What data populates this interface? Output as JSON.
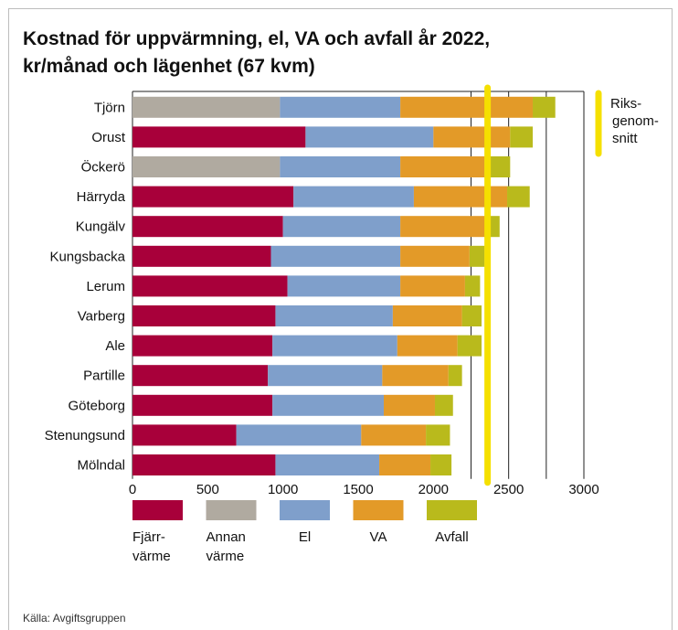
{
  "title_line1": "Kostnad för uppvärmning, el, VA och avfall år 2022,",
  "title_line2": "kr/månad och lägenhet (67 kvm)",
  "source": "Källa: Avgiftsgruppen",
  "colors": {
    "fjarrvarme": "#a8003a",
    "annan_varme": "#b0aaa0",
    "el": "#7f9fcb",
    "va": "#e39a28",
    "avfall": "#b9ba1c",
    "reference": "#f5e000",
    "gridline": "#222222"
  },
  "chart_data": {
    "type": "bar",
    "orientation": "horizontal",
    "stacked": true,
    "title": "Kostnad för uppvärmning, el, VA och avfall år 2022, kr/månad och lägenhet (67 kvm)",
    "xlim": [
      0,
      3000
    ],
    "xticks": [
      0,
      500,
      1000,
      1500,
      2000,
      2500,
      3000
    ],
    "grid_x_values": [
      2250,
      2500,
      2750,
      3000
    ],
    "legend_position": "bottom",
    "categories": [
      "Tjörn",
      "Orust",
      "Öckerö",
      "Härryda",
      "Kungälv",
      "Kungsbacka",
      "Lerum",
      "Varberg",
      "Ale",
      "Partille",
      "Göteborg",
      "Stenungsund",
      "Mölndal"
    ],
    "heating_type": [
      "annan",
      "fjarr",
      "annan",
      "fjarr",
      "fjarr",
      "fjarr",
      "fjarr",
      "fjarr",
      "fjarr",
      "fjarr",
      "fjarr",
      "fjarr",
      "fjarr"
    ],
    "series": [
      {
        "key": "fjarrvarme",
        "name": "Fjärr- värme",
        "values": [
          0,
          1150,
          0,
          1070,
          1000,
          920,
          1030,
          950,
          930,
          900,
          930,
          690,
          950
        ]
      },
      {
        "key": "annan_varme",
        "name": "Annan värme",
        "values": [
          980,
          0,
          980,
          0,
          0,
          0,
          0,
          0,
          0,
          0,
          0,
          0,
          0
        ]
      },
      {
        "key": "el",
        "name": "El",
        "values": [
          800,
          850,
          800,
          800,
          780,
          860,
          750,
          780,
          830,
          760,
          740,
          830,
          690
        ]
      },
      {
        "key": "va",
        "name": "VA",
        "values": [
          880,
          510,
          560,
          620,
          580,
          460,
          430,
          460,
          400,
          440,
          340,
          430,
          340
        ]
      },
      {
        "key": "avfall",
        "name": "Avfall",
        "values": [
          150,
          150,
          170,
          150,
          80,
          100,
          100,
          130,
          160,
          90,
          120,
          160,
          140
        ]
      }
    ],
    "legend": [
      {
        "key": "fjarrvarme",
        "line1": "Fjärr-",
        "line2": "värme"
      },
      {
        "key": "annan_varme",
        "line1": "Annan",
        "line2": "värme"
      },
      {
        "key": "el",
        "line1": "El",
        "line2": ""
      },
      {
        "key": "va",
        "line1": "VA",
        "line2": ""
      },
      {
        "key": "avfall",
        "line1": "Avfall",
        "line2": ""
      }
    ],
    "reference_line": {
      "value": 2360,
      "label_lines": [
        "Riks-",
        "genom-",
        "snitt"
      ]
    }
  }
}
